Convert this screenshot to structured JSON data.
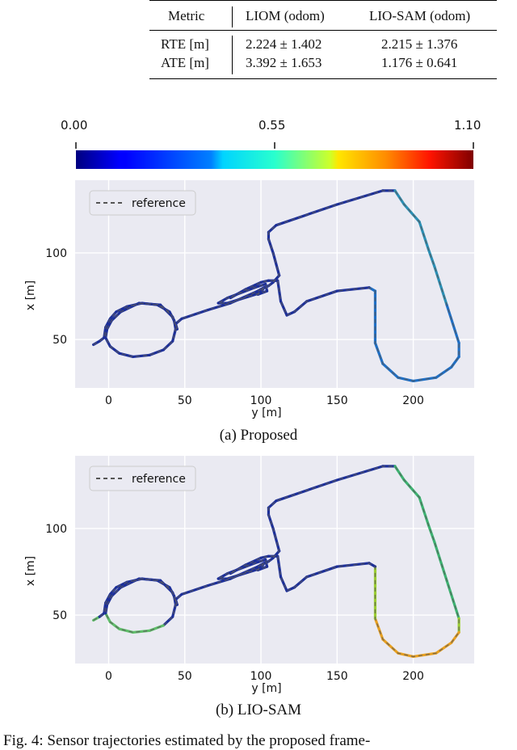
{
  "table": {
    "headers": [
      "Metric",
      "LIOM (odom)",
      "LIO-SAM (odom)"
    ],
    "rows": [
      {
        "metric": "RTE [m]",
        "liom": "2.224 ± 1.402",
        "liosam": "2.215 ± 1.376"
      },
      {
        "metric": "ATE [m]",
        "liom": "3.392 ± 1.653",
        "liosam": "1.176 ± 0.641"
      }
    ]
  },
  "colorbar": {
    "min_label": "0.00",
    "mid_label": "0.55",
    "max_label": "1.10",
    "colormap": "jet",
    "range": [
      0.0,
      1.1
    ]
  },
  "chart_data": [
    {
      "type": "line",
      "caption": "(a) Proposed",
      "xlabel": "y [m]",
      "ylabel": "x [m]",
      "x_ticks": [
        "0",
        "50",
        "100",
        "150",
        "200"
      ],
      "y_ticks": [
        "50",
        "100"
      ],
      "xlim": [
        -22,
        240
      ],
      "ylim": [
        22,
        142
      ],
      "grid": true,
      "legend_position": "top-left",
      "series": [
        {
          "name": "reference",
          "style": "dashed",
          "color": "#555555"
        }
      ],
      "error_color_profile": "low error (blue/cyan) along whole trajectory"
    },
    {
      "type": "line",
      "caption": "(b) LIO-SAM",
      "xlabel": "y [m]",
      "ylabel": "x [m]",
      "x_ticks": [
        "0",
        "50",
        "100",
        "150",
        "200"
      ],
      "y_ticks": [
        "50",
        "100"
      ],
      "xlim": [
        -22,
        240
      ],
      "ylim": [
        22,
        142
      ],
      "grid": true,
      "legend_position": "top-left",
      "series": [
        {
          "name": "reference",
          "style": "dashed",
          "color": "#555555"
        }
      ],
      "error_color_profile": "higher error (yellow/red) on bottom-right loop"
    }
  ],
  "trajectory": [
    [
      -10,
      47
    ],
    [
      -6,
      49
    ],
    [
      -3,
      51
    ],
    [
      -2,
      57
    ],
    [
      1,
      62
    ],
    [
      5,
      66
    ],
    [
      12,
      69
    ],
    [
      22,
      71
    ],
    [
      32,
      70
    ],
    [
      40,
      66
    ],
    [
      43,
      61
    ],
    [
      44,
      56
    ],
    [
      42,
      49
    ],
    [
      36,
      44
    ],
    [
      27,
      41
    ],
    [
      16,
      40
    ],
    [
      7,
      42
    ],
    [
      1,
      46
    ],
    [
      -2,
      51
    ],
    [
      -1,
      56
    ],
    [
      2,
      61
    ],
    [
      8,
      66
    ],
    [
      20,
      71
    ],
    [
      34,
      70
    ],
    [
      42,
      63
    ],
    [
      45,
      56
    ],
    [
      44,
      59
    ],
    [
      48,
      62
    ],
    [
      65,
      67
    ],
    [
      80,
      71
    ],
    [
      98,
      78
    ],
    [
      102,
      80
    ],
    [
      100,
      77
    ],
    [
      78,
      71
    ],
    [
      72,
      71
    ],
    [
      78,
      74
    ],
    [
      96,
      80
    ],
    [
      103,
      82
    ],
    [
      104,
      78
    ],
    [
      98,
      76
    ],
    [
      100,
      79
    ],
    [
      105,
      81
    ],
    [
      108,
      83
    ],
    [
      112,
      87
    ],
    [
      108,
      100
    ],
    [
      105,
      108
    ],
    [
      105,
      112
    ],
    [
      110,
      116
    ],
    [
      150,
      128
    ],
    [
      180,
      136
    ],
    [
      188,
      136
    ],
    [
      194,
      128
    ],
    [
      204,
      118
    ],
    [
      210,
      102
    ],
    [
      214,
      92
    ],
    [
      222,
      70
    ],
    [
      230,
      48
    ],
    [
      230,
      40
    ],
    [
      225,
      34
    ],
    [
      215,
      28
    ],
    [
      200,
      26
    ],
    [
      190,
      28
    ],
    [
      180,
      36
    ],
    [
      175,
      48
    ],
    [
      175,
      78
    ],
    [
      171,
      80
    ],
    [
      150,
      78
    ],
    [
      130,
      72
    ],
    [
      122,
      66
    ],
    [
      117,
      64
    ],
    [
      113,
      72
    ],
    [
      111,
      84
    ],
    [
      105,
      84
    ],
    [
      100,
      83
    ],
    [
      90,
      79
    ],
    [
      80,
      74
    ]
  ],
  "labels": {
    "footer": "Fig. 4: Sensor trajectories estimated by the proposed frame-"
  }
}
